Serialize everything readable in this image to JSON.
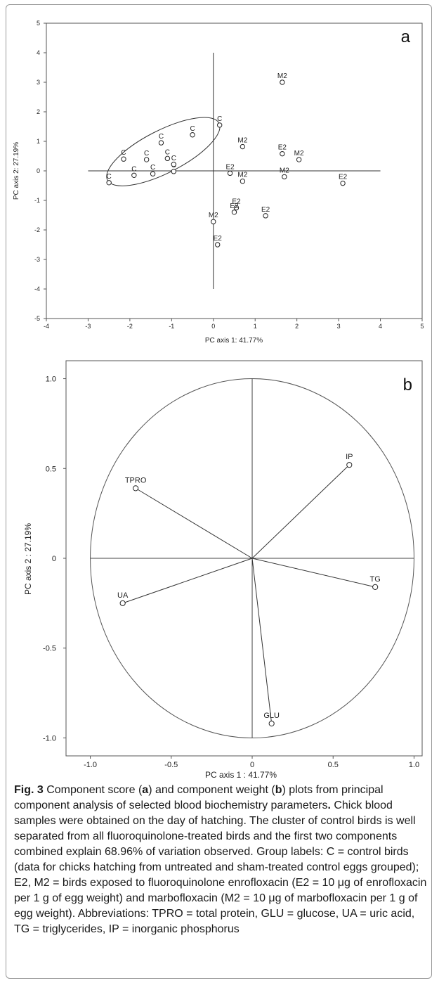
{
  "chart_data": [
    {
      "type": "scatter",
      "panel_label": "a",
      "xlabel": "PC axis 1: 41.77%",
      "ylabel": "PC axis 2: 27.19%",
      "xlim": [
        -4,
        5
      ],
      "ylim": [
        -5,
        5
      ],
      "x_ticks": [
        "-4",
        "-3",
        "-2",
        "-1",
        "0",
        "1",
        "2",
        "3",
        "4",
        "5"
      ],
      "y_ticks": [
        "5",
        "4",
        "3",
        "2",
        "1",
        "0",
        "-1",
        "-2",
        "-3",
        "-4",
        "-5"
      ],
      "grid": false,
      "points": [
        {
          "label": "C",
          "x": -2.5,
          "y": -0.4
        },
        {
          "label": "C",
          "x": -2.15,
          "y": 0.4
        },
        {
          "label": "C",
          "x": -1.9,
          "y": -0.15
        },
        {
          "label": "C",
          "x": -1.6,
          "y": 0.38
        },
        {
          "label": "C",
          "x": -1.45,
          "y": -0.1
        },
        {
          "label": "C",
          "x": -1.25,
          "y": 0.95
        },
        {
          "label": "C",
          "x": -1.1,
          "y": 0.42
        },
        {
          "label": "C",
          "x": -0.95,
          "y": -0.02
        },
        {
          "label": "C",
          "x": -0.95,
          "y": 0.22
        },
        {
          "label": "C",
          "x": -0.5,
          "y": 1.22
        },
        {
          "label": "C",
          "x": 0.15,
          "y": 1.55
        },
        {
          "label": "M2",
          "x": 1.65,
          "y": 3.0
        },
        {
          "label": "M2",
          "x": 0.7,
          "y": 0.82
        },
        {
          "label": "M2",
          "x": 0.7,
          "y": -0.35
        },
        {
          "label": "M2",
          "x": 2.05,
          "y": 0.38
        },
        {
          "label": "M2",
          "x": 1.7,
          "y": -0.2
        },
        {
          "label": "M2",
          "x": 0.0,
          "y": -1.72
        },
        {
          "label": "E2",
          "x": 1.65,
          "y": 0.58
        },
        {
          "label": "E2",
          "x": 0.4,
          "y": -0.08
        },
        {
          "label": "E2",
          "x": 3.1,
          "y": -0.42
        },
        {
          "label": "E2",
          "x": 0.55,
          "y": -1.25
        },
        {
          "label": "E2",
          "x": 0.5,
          "y": -1.4
        },
        {
          "label": "E2",
          "x": 1.25,
          "y": -1.52
        },
        {
          "label": "E2",
          "x": 0.1,
          "y": -2.5
        }
      ]
    },
    {
      "type": "scatter",
      "panel_label": "b",
      "xlabel": "PC axis 1 : 41.77%",
      "ylabel": "PC axis 2 : 27.19%",
      "xlim": [
        -1.15,
        1.05
      ],
      "ylim": [
        -1.1,
        1.1
      ],
      "x_ticks": [
        "-1.0",
        "-0.5",
        "0",
        "0.5",
        "1.0"
      ],
      "y_ticks": [
        "1.0",
        "0.5",
        "0",
        "-0.5",
        "-1.0"
      ],
      "grid": false,
      "vectors": [
        {
          "label": "IP",
          "x": 0.6,
          "y": 0.52
        },
        {
          "label": "TPRO",
          "x": -0.72,
          "y": 0.39
        },
        {
          "label": "TG",
          "x": 0.76,
          "y": -0.16
        },
        {
          "label": "UA",
          "x": -0.8,
          "y": -0.25
        },
        {
          "label": "GLU",
          "x": 0.12,
          "y": -0.92
        }
      ]
    }
  ],
  "caption": {
    "fig_label": "Fig. 3",
    "bold_a": "a",
    "bold_b": "b",
    "part1": " Component score (",
    "part2": ") and component weight (",
    "part3": ") plots from principal component analysis of selected blood biochemistry parameters",
    "period": ".",
    "body": " Chick blood samples were obtained on the day of hatching. The cluster of control birds is well separated from all fluoroquinolone-treated birds and the first two components combined explain 68.96% of variation observed. Group labels: C = control birds (data for chicks hatching from untreated and sham-treated control eggs grouped); E2, M2 = birds exposed to fluoroquinolone enrofloxacin (E2 = 10 μg of enrofloxacin per 1 g of egg weight) and marbofloxacin (M2 = 10 μg of marbofloxacin per 1 g of egg weight). Abbreviations: TPRO = total protein, GLU = glucose, UA = uric acid, TG = triglycerides, IP = inorganic phosphorus"
  }
}
